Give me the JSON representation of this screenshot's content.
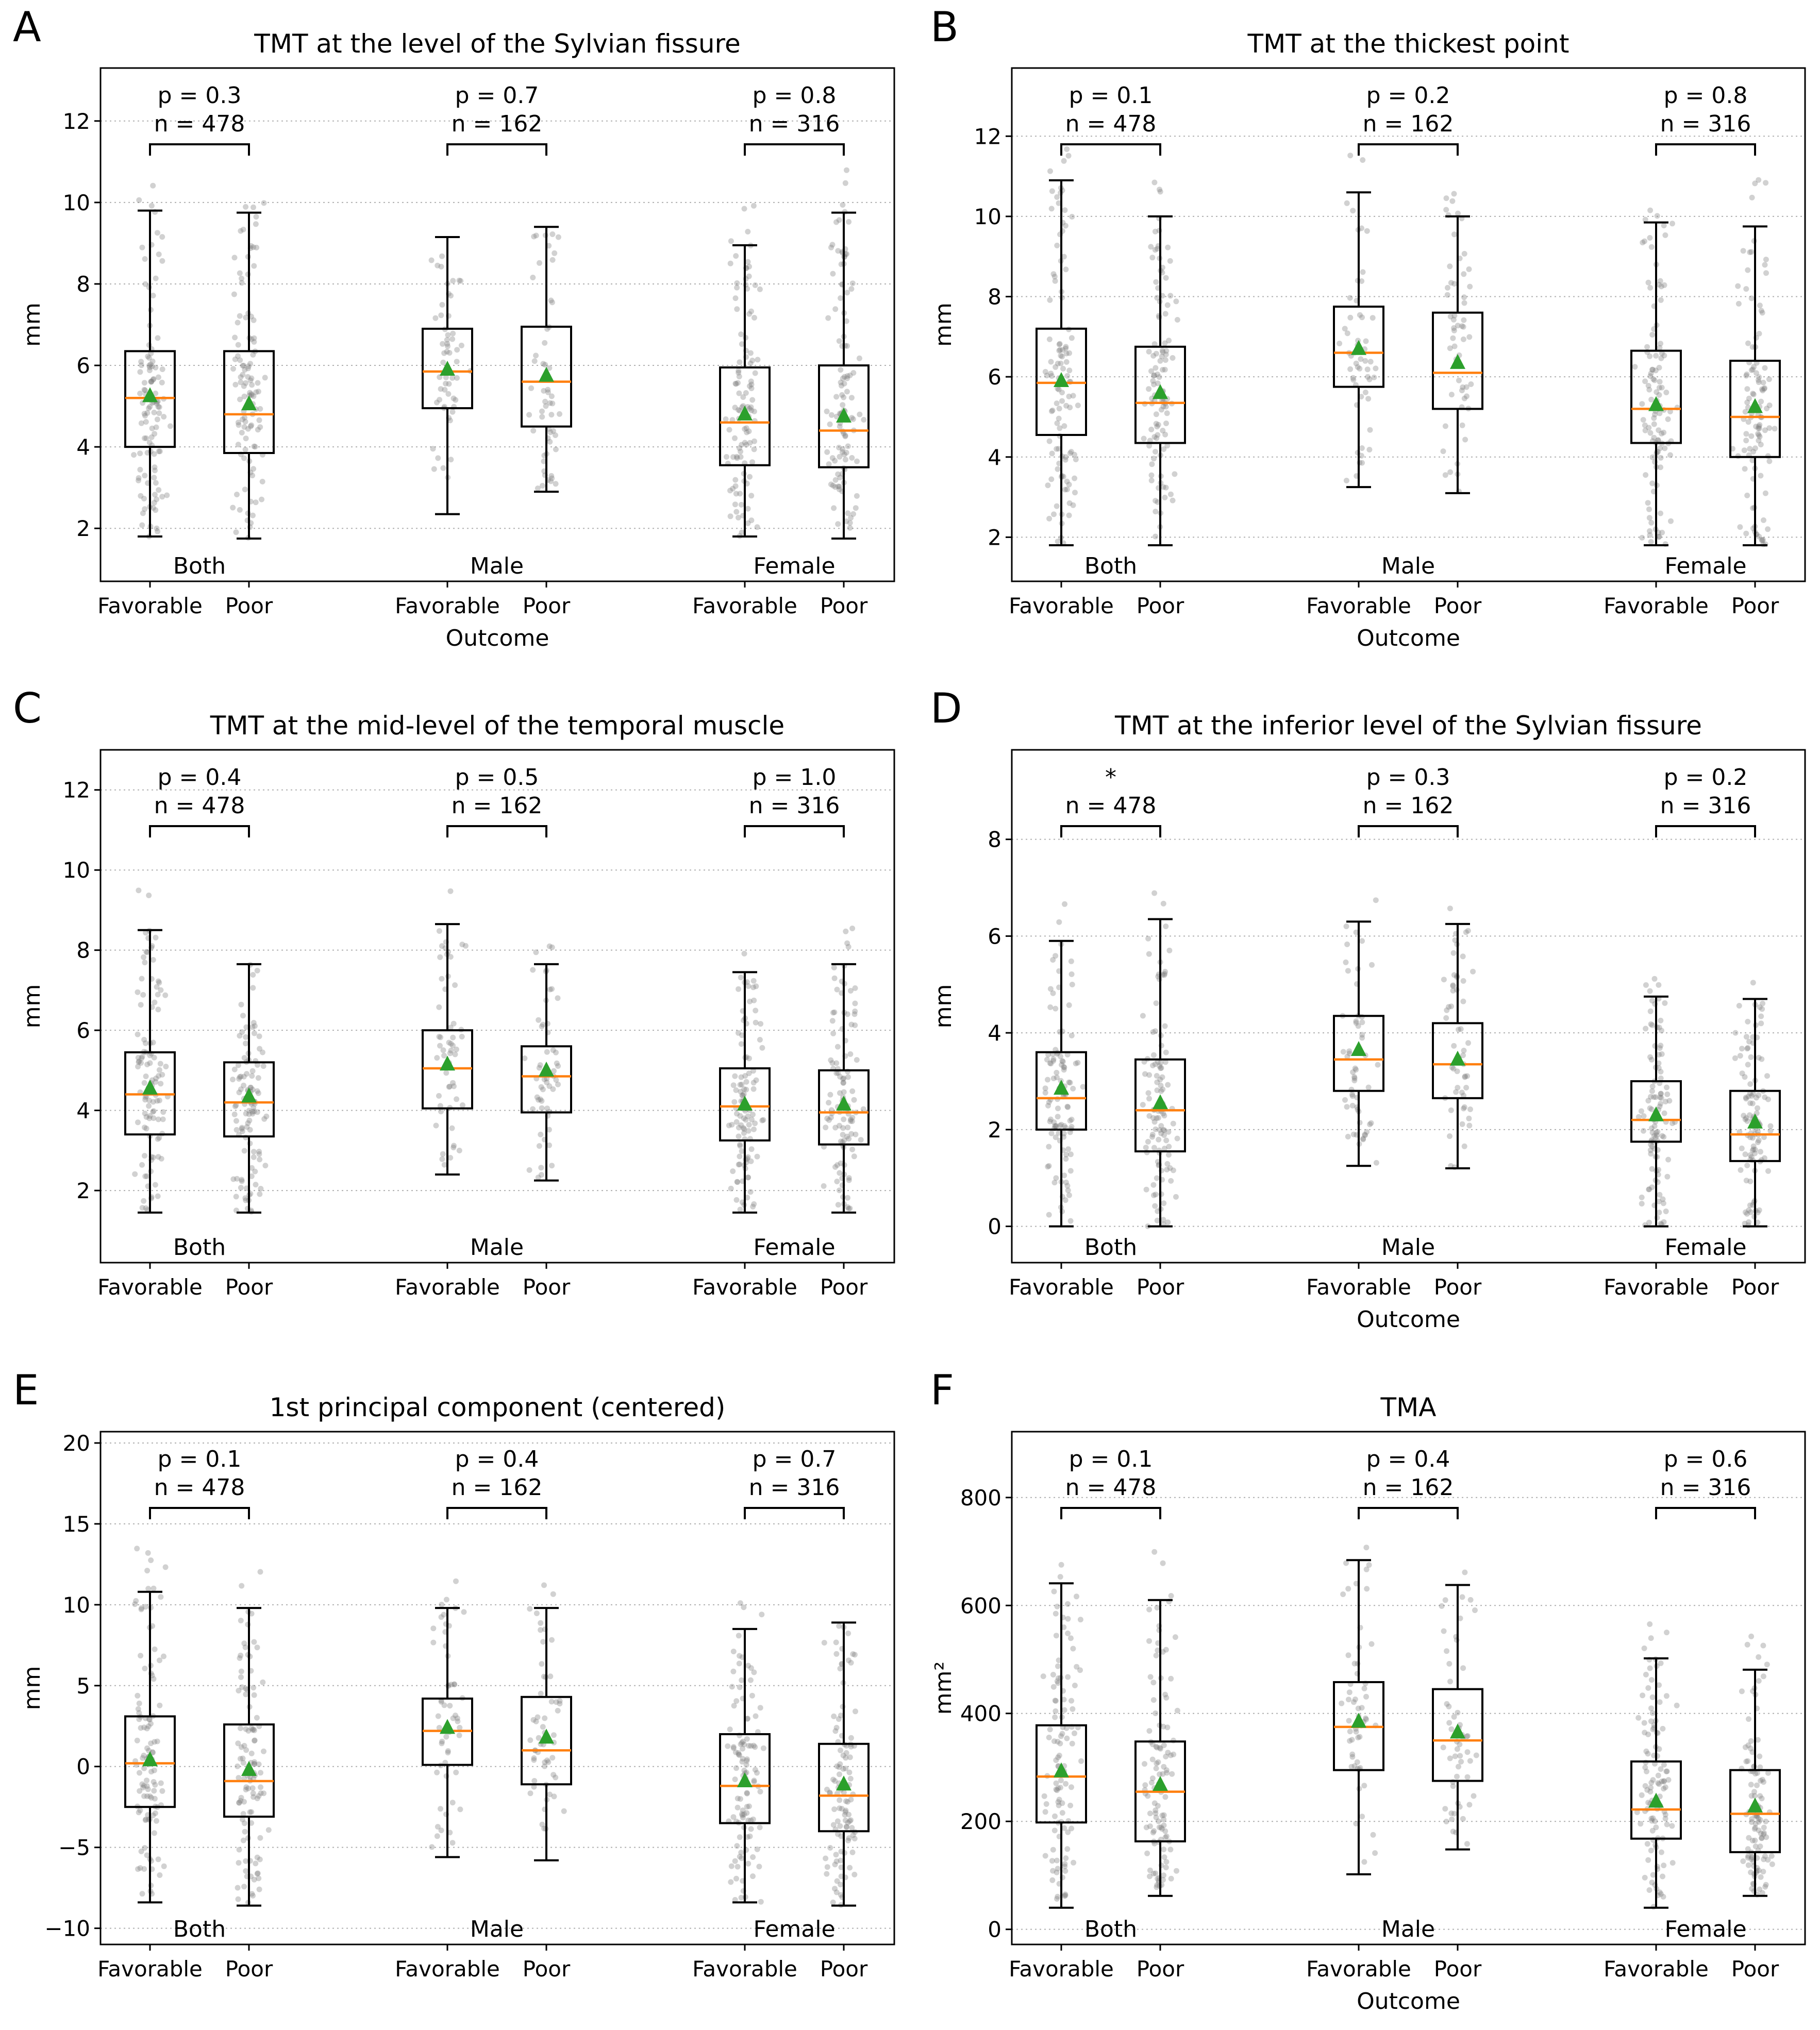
{
  "xticklabels": [
    "Favorable",
    "Poor"
  ],
  "chart_data": [
    {
      "type": "box",
      "letter": "A",
      "title": "TMT at the level of the Sylvian fissure",
      "ylabel": "mm",
      "xlabel": "Outcome",
      "ylim": [
        0.7,
        13.3
      ],
      "yticks": [
        2,
        4,
        6,
        8,
        10,
        12
      ],
      "groups": [
        {
          "label": "Both",
          "annotation": "p = 0.3",
          "n": "n = 478",
          "boxes": [
            {
              "outcome": "Favorable",
              "whislo": 1.8,
              "q1": 4.0,
              "median": 5.2,
              "q3": 6.35,
              "whishi": 9.8,
              "mean": 5.25
            },
            {
              "outcome": "Poor",
              "whislo": 1.75,
              "q1": 3.85,
              "median": 4.8,
              "q3": 6.35,
              "whishi": 9.75,
              "mean": 5.05
            }
          ]
        },
        {
          "label": "Male",
          "annotation": "p = 0.7",
          "n": "n = 162",
          "boxes": [
            {
              "outcome": "Favorable",
              "whislo": 2.35,
              "q1": 4.95,
              "median": 5.85,
              "q3": 6.9,
              "whishi": 9.15,
              "mean": 5.9
            },
            {
              "outcome": "Poor",
              "whislo": 2.9,
              "q1": 4.5,
              "median": 5.6,
              "q3": 6.95,
              "whishi": 9.4,
              "mean": 5.75
            }
          ]
        },
        {
          "label": "Female",
          "annotation": "p = 0.8",
          "n": "n = 316",
          "boxes": [
            {
              "outcome": "Favorable",
              "whislo": 1.8,
              "q1": 3.55,
              "median": 4.6,
              "q3": 5.95,
              "whishi": 8.95,
              "mean": 4.8
            },
            {
              "outcome": "Poor",
              "whislo": 1.75,
              "q1": 3.5,
              "median": 4.4,
              "q3": 6.0,
              "whishi": 9.75,
              "mean": 4.75
            }
          ]
        }
      ]
    },
    {
      "type": "box",
      "letter": "B",
      "title": "TMT at the thickest point",
      "ylabel": "mm",
      "xlabel": "Outcome",
      "ylim": [
        0.9,
        13.7
      ],
      "yticks": [
        2,
        4,
        6,
        8,
        10,
        12
      ],
      "groups": [
        {
          "label": "Both",
          "annotation": "p = 0.1",
          "n": "n = 478",
          "boxes": [
            {
              "outcome": "Favorable",
              "whislo": 1.8,
              "q1": 4.55,
              "median": 5.85,
              "q3": 7.2,
              "whishi": 10.9,
              "mean": 5.9
            },
            {
              "outcome": "Poor",
              "whislo": 1.8,
              "q1": 4.35,
              "median": 5.35,
              "q3": 6.75,
              "whishi": 10.0,
              "mean": 5.6
            }
          ]
        },
        {
          "label": "Male",
          "annotation": "p = 0.2",
          "n": "n = 162",
          "boxes": [
            {
              "outcome": "Favorable",
              "whislo": 3.25,
              "q1": 5.75,
              "median": 6.6,
              "q3": 7.75,
              "whishi": 10.6,
              "mean": 6.7
            },
            {
              "outcome": "Poor",
              "whislo": 3.1,
              "q1": 5.2,
              "median": 6.1,
              "q3": 7.6,
              "whishi": 10.0,
              "mean": 6.35
            }
          ]
        },
        {
          "label": "Female",
          "annotation": "p = 0.8",
          "n": "n = 316",
          "boxes": [
            {
              "outcome": "Favorable",
              "whislo": 1.8,
              "q1": 4.35,
              "median": 5.2,
              "q3": 6.65,
              "whishi": 9.85,
              "mean": 5.3
            },
            {
              "outcome": "Poor",
              "whislo": 1.8,
              "q1": 4.0,
              "median": 5.0,
              "q3": 6.4,
              "whishi": 9.75,
              "mean": 5.25
            }
          ]
        }
      ]
    },
    {
      "type": "box",
      "letter": "C",
      "title": "TMT at the mid-level of the temporal muscle",
      "ylabel": "mm",
      "xlabel": "Outcome",
      "ylim": [
        0.2,
        13.0
      ],
      "yticks": [
        2,
        4,
        6,
        8,
        10,
        12
      ],
      "groups": [
        {
          "label": "Both",
          "annotation": "p = 0.4",
          "n": "n = 478",
          "boxes": [
            {
              "outcome": "Favorable",
              "whislo": 1.45,
              "q1": 3.4,
              "median": 4.4,
              "q3": 5.45,
              "whishi": 8.5,
              "mean": 4.55
            },
            {
              "outcome": "Poor",
              "whislo": 1.45,
              "q1": 3.35,
              "median": 4.2,
              "q3": 5.2,
              "whishi": 7.65,
              "mean": 4.35
            }
          ]
        },
        {
          "label": "Male",
          "annotation": "p = 0.5",
          "n": "n = 162",
          "boxes": [
            {
              "outcome": "Favorable",
              "whislo": 2.4,
              "q1": 4.05,
              "median": 5.05,
              "q3": 6.0,
              "whishi": 8.65,
              "mean": 5.15
            },
            {
              "outcome": "Poor",
              "whislo": 2.25,
              "q1": 3.95,
              "median": 4.85,
              "q3": 5.6,
              "whishi": 7.65,
              "mean": 5.0
            }
          ]
        },
        {
          "label": "Female",
          "annotation": "p = 1.0",
          "n": "n = 316",
          "boxes": [
            {
              "outcome": "Favorable",
              "whislo": 1.45,
              "q1": 3.25,
              "median": 4.1,
              "q3": 5.05,
              "whishi": 7.45,
              "mean": 4.15
            },
            {
              "outcome": "Poor",
              "whislo": 1.45,
              "q1": 3.15,
              "median": 3.95,
              "q3": 5.0,
              "whishi": 7.65,
              "mean": 4.15
            }
          ]
        }
      ]
    },
    {
      "type": "box",
      "letter": "D",
      "title": "TMT at the inferior level of the Sylvian fissure",
      "ylabel": "mm",
      "xlabel": "Outcome",
      "ylim": [
        -0.75,
        9.85
      ],
      "yticks": [
        0,
        2,
        4,
        6,
        8
      ],
      "groups": [
        {
          "label": "Both",
          "annotation": "*",
          "n": "n = 478",
          "boxes": [
            {
              "outcome": "Favorable",
              "whislo": 0.0,
              "q1": 2.0,
              "median": 2.65,
              "q3": 3.6,
              "whishi": 5.9,
              "mean": 2.85
            },
            {
              "outcome": "Poor",
              "whislo": 0.0,
              "q1": 1.55,
              "median": 2.4,
              "q3": 3.45,
              "whishi": 6.35,
              "mean": 2.55
            }
          ]
        },
        {
          "label": "Male",
          "annotation": "p = 0.3",
          "n": "n = 162",
          "boxes": [
            {
              "outcome": "Favorable",
              "whislo": 1.25,
              "q1": 2.8,
              "median": 3.45,
              "q3": 4.35,
              "whishi": 6.3,
              "mean": 3.65
            },
            {
              "outcome": "Poor",
              "whislo": 1.2,
              "q1": 2.65,
              "median": 3.35,
              "q3": 4.2,
              "whishi": 6.25,
              "mean": 3.45
            }
          ]
        },
        {
          "label": "Female",
          "annotation": "p = 0.2",
          "n": "n = 316",
          "boxes": [
            {
              "outcome": "Favorable",
              "whislo": 0.0,
              "q1": 1.75,
              "median": 2.2,
              "q3": 3.0,
              "whishi": 4.75,
              "mean": 2.3
            },
            {
              "outcome": "Poor",
              "whislo": 0.0,
              "q1": 1.35,
              "median": 1.9,
              "q3": 2.8,
              "whishi": 4.7,
              "mean": 2.15
            }
          ]
        }
      ]
    },
    {
      "type": "box",
      "letter": "E",
      "title": "1st principal component (centered)",
      "ylabel": "mm",
      "xlabel": "Outcome",
      "ylim": [
        -11.0,
        20.7
      ],
      "yticks": [
        -10,
        -5,
        0,
        5,
        10,
        15,
        20
      ],
      "yticklabels": [
        "−10",
        "−5",
        "0",
        "5",
        "10",
        "15",
        "20"
      ],
      "groups": [
        {
          "label": "Both",
          "annotation": "p = 0.1",
          "n": "n = 478",
          "boxes": [
            {
              "outcome": "Favorable",
              "whislo": -8.4,
              "q1": -2.5,
              "median": 0.2,
              "q3": 3.1,
              "whishi": 10.8,
              "mean": 0.4
            },
            {
              "outcome": "Poor",
              "whislo": -8.6,
              "q1": -3.1,
              "median": -0.9,
              "q3": 2.6,
              "whishi": 9.8,
              "mean": -0.2
            }
          ]
        },
        {
          "label": "Male",
          "annotation": "p = 0.4",
          "n": "n = 162",
          "boxes": [
            {
              "outcome": "Favorable",
              "whislo": -5.6,
              "q1": 0.1,
              "median": 2.2,
              "q3": 4.2,
              "whishi": 9.8,
              "mean": 2.4
            },
            {
              "outcome": "Poor",
              "whislo": -5.8,
              "q1": -1.1,
              "median": 1.0,
              "q3": 4.3,
              "whishi": 9.8,
              "mean": 1.8
            }
          ]
        },
        {
          "label": "Female",
          "annotation": "p = 0.7",
          "n": "n = 316",
          "boxes": [
            {
              "outcome": "Favorable",
              "whislo": -8.4,
              "q1": -3.5,
              "median": -1.2,
              "q3": 2.0,
              "whishi": 8.5,
              "mean": -0.9
            },
            {
              "outcome": "Poor",
              "whislo": -8.6,
              "q1": -4.0,
              "median": -1.8,
              "q3": 1.4,
              "whishi": 8.9,
              "mean": -1.1
            }
          ]
        }
      ]
    },
    {
      "type": "box",
      "letter": "F",
      "title": "TMA",
      "ylabel": "mm²",
      "xlabel": "Outcome",
      "ylim": [
        -28,
        922
      ],
      "yticks": [
        0,
        200,
        400,
        600,
        800
      ],
      "groups": [
        {
          "label": "Both",
          "annotation": "p = 0.1",
          "n": "n = 478",
          "boxes": [
            {
              "outcome": "Favorable",
              "whislo": 40,
              "q1": 198,
              "median": 283,
              "q3": 378,
              "whishi": 641,
              "mean": 293
            },
            {
              "outcome": "Poor",
              "whislo": 62,
              "q1": 163,
              "median": 255,
              "q3": 348,
              "whishi": 610,
              "mean": 268
            }
          ]
        },
        {
          "label": "Male",
          "annotation": "p = 0.4",
          "n": "n = 162",
          "boxes": [
            {
              "outcome": "Favorable",
              "whislo": 102,
              "q1": 295,
              "median": 375,
              "q3": 458,
              "whishi": 684,
              "mean": 385
            },
            {
              "outcome": "Poor",
              "whislo": 148,
              "q1": 275,
              "median": 350,
              "q3": 445,
              "whishi": 638,
              "mean": 365
            }
          ]
        },
        {
          "label": "Female",
          "annotation": "p = 0.6",
          "n": "n = 316",
          "boxes": [
            {
              "outcome": "Favorable",
              "whislo": 40,
              "q1": 168,
              "median": 222,
              "q3": 311,
              "whishi": 502,
              "mean": 237
            },
            {
              "outcome": "Poor",
              "whislo": 62,
              "q1": 143,
              "median": 214,
              "q3": 295,
              "whishi": 481,
              "mean": 228
            }
          ]
        }
      ]
    }
  ]
}
